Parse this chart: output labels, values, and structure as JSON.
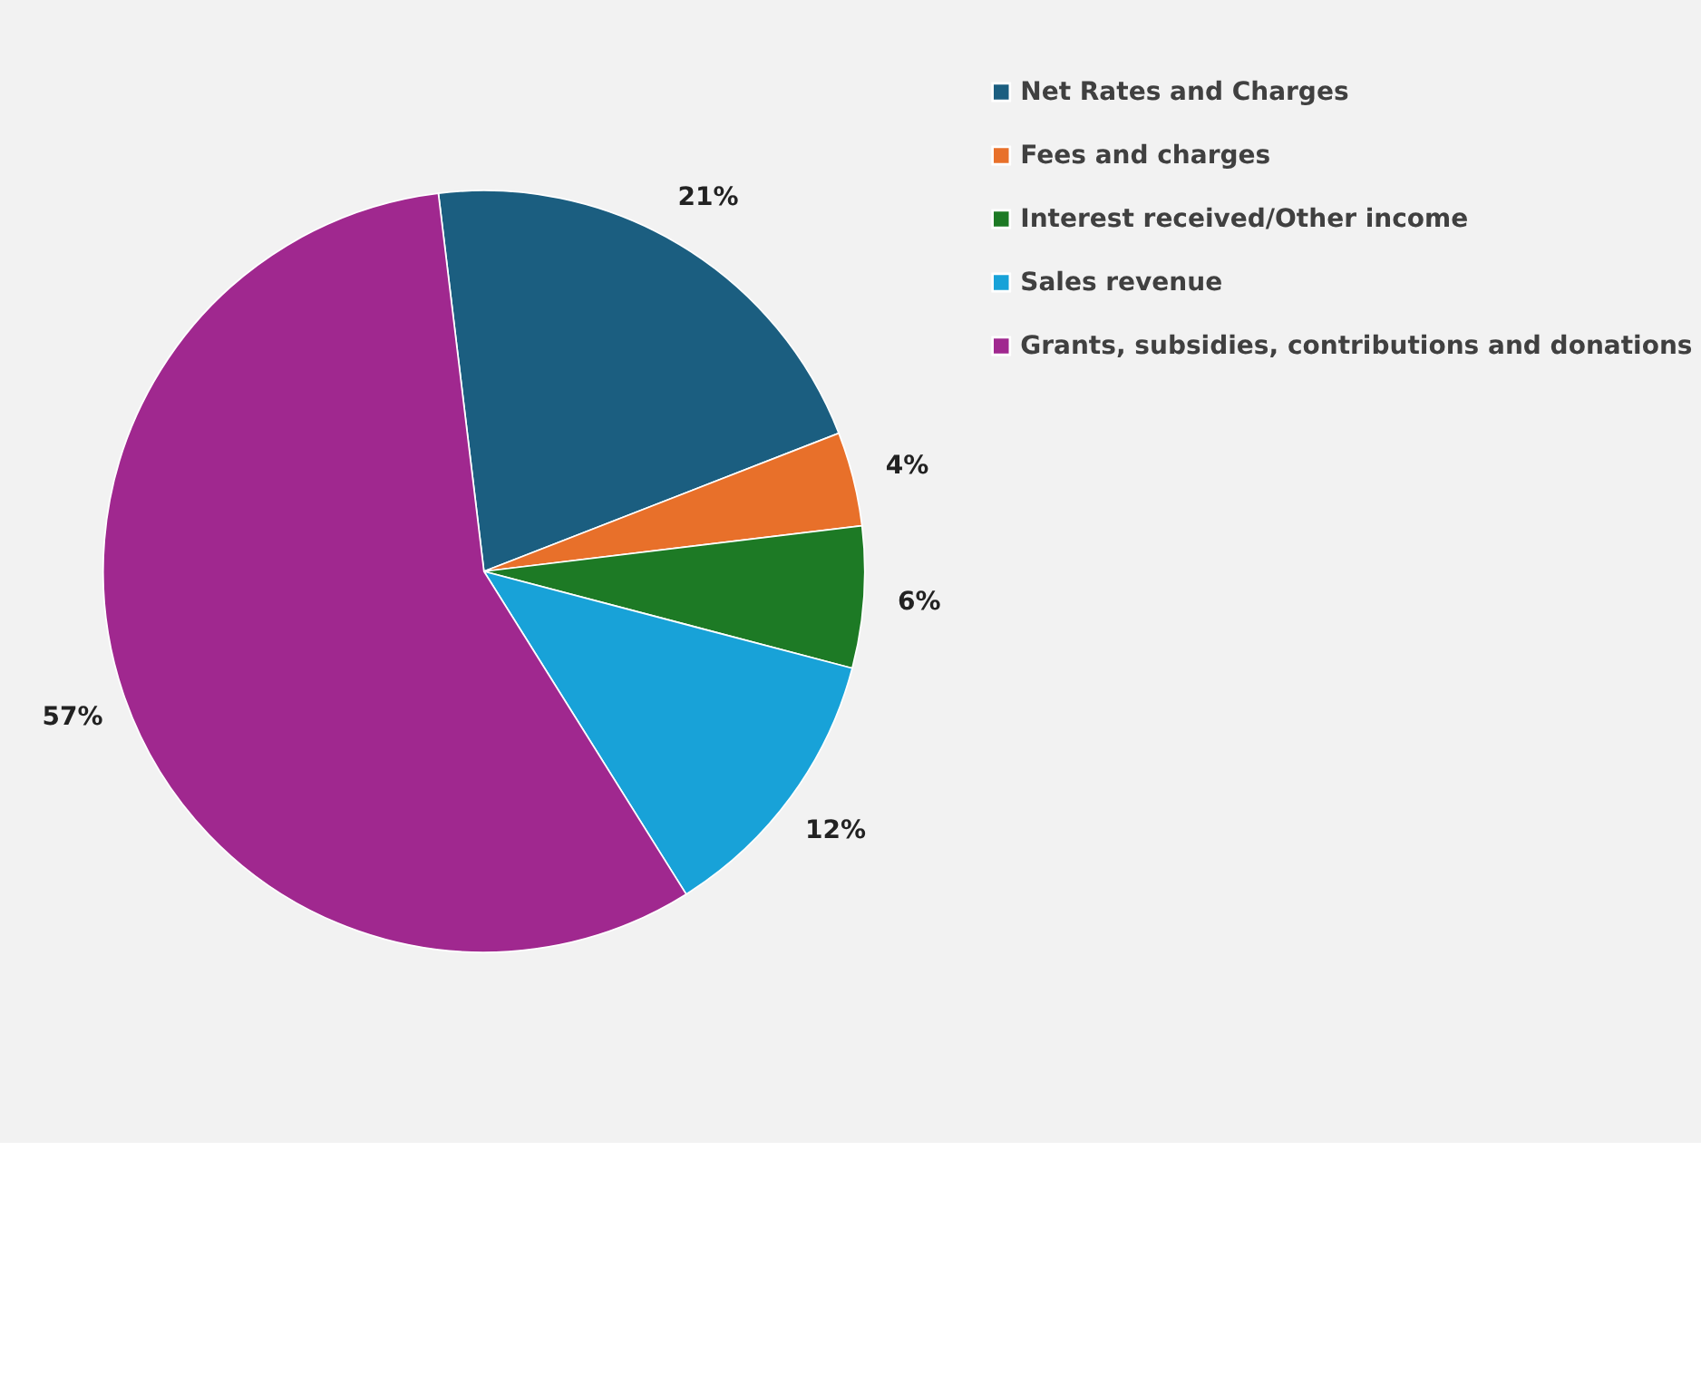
{
  "chart_data": {
    "type": "pie",
    "categories": [
      "Net Rates and Charges",
      "Fees and charges",
      "Interest received/Other income",
      "Sales revenue",
      "Grants, subsidies, contributions and donations"
    ],
    "values": [
      21,
      4,
      6,
      12,
      57
    ],
    "colors": [
      "#1b5e80",
      "#e8702a",
      "#1d7a25",
      "#18a2d8",
      "#a0288f"
    ],
    "value_labels": [
      "21%",
      "4%",
      "6%",
      "12%",
      "57%"
    ],
    "legend": "right"
  }
}
